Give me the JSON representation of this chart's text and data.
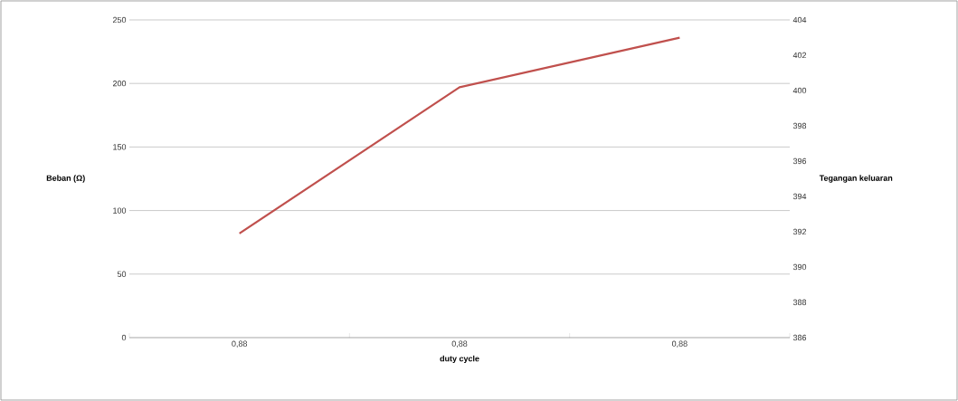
{
  "chart_data": {
    "type": "line",
    "xlabel": "duty cycle",
    "ylabel": "Beban (Ω)",
    "y2label": "Tegangan keluaran",
    "categories": [
      "0,88",
      "0,88",
      "0,88"
    ],
    "series": [
      {
        "color": "#c0504d",
        "values": [
          82,
          197,
          236
        ]
      }
    ],
    "ylim": [
      0,
      250
    ],
    "yticks": [
      0,
      50,
      100,
      150,
      200,
      250
    ],
    "y2lim": [
      386,
      404
    ],
    "y2ticks": [
      386,
      388,
      390,
      392,
      394,
      396,
      398,
      400,
      402,
      404
    ],
    "grid": "y",
    "marker": "none",
    "line_style": "solid"
  }
}
